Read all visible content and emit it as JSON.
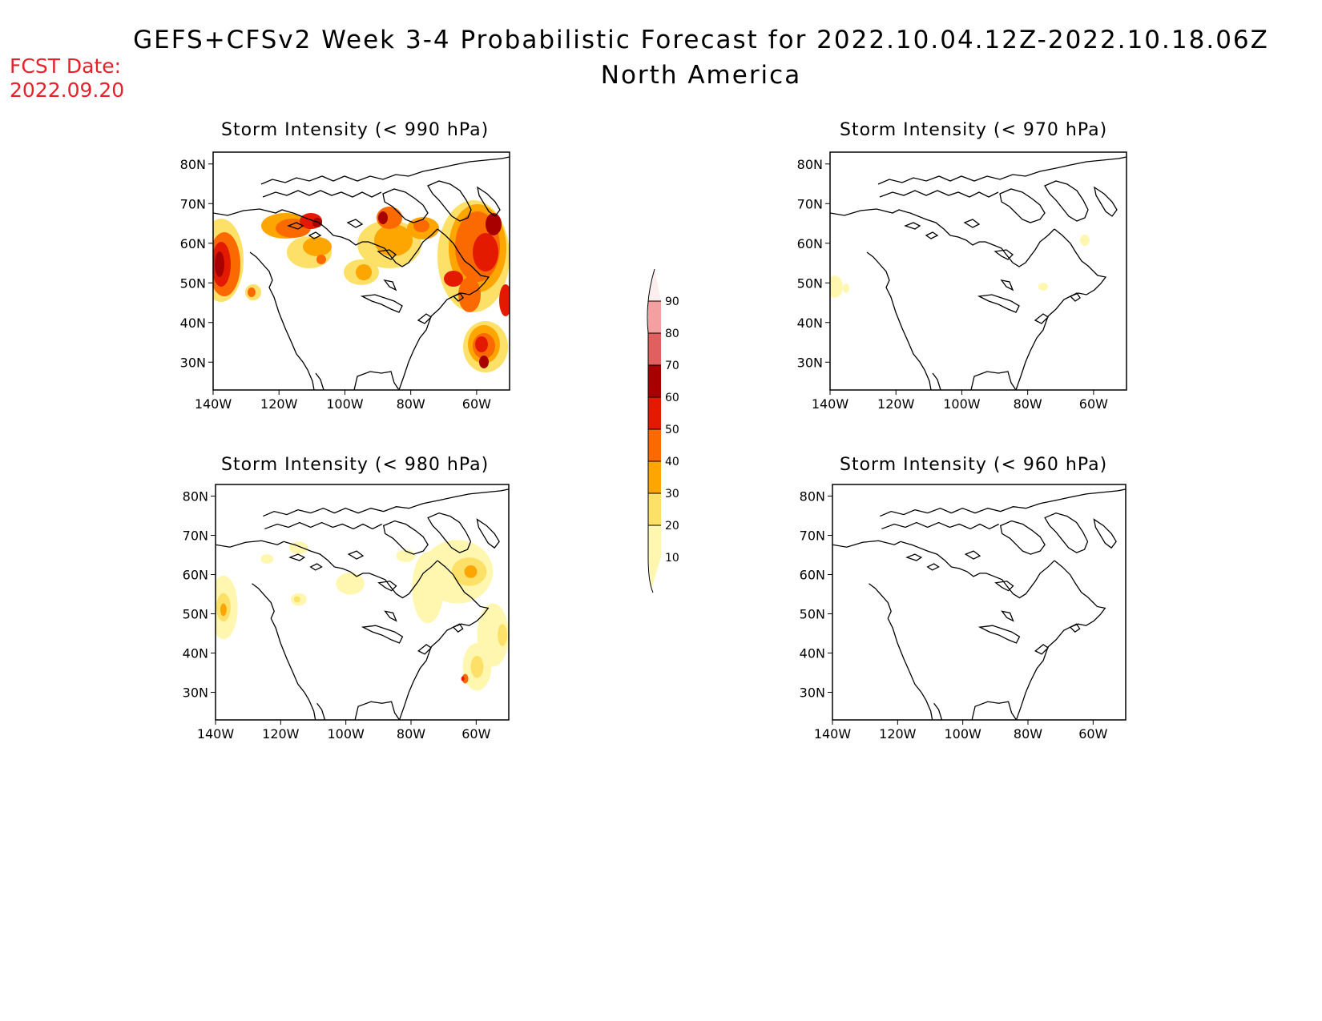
{
  "header": {
    "title": "GEFS+CFSv2 Week 3-4 Probabilistic Forecast for 2022.10.04.12Z-2022.10.18.06Z",
    "subtitle": "North America",
    "fcst_label": "FCST Date:",
    "fcst_date": "2022.09.20"
  },
  "colors": {
    "title_red": "#e8202a",
    "levels": [
      "#fff7b0",
      "#fde068",
      "#fda500",
      "#fb6a00",
      "#e41a00",
      "#a80000",
      "#e06060",
      "#f4a0a0",
      "#fde3e3"
    ]
  },
  "colorbar": {
    "labels": [
      "10",
      "20",
      "30",
      "40",
      "50",
      "60",
      "70",
      "80",
      "90"
    ]
  },
  "axes": {
    "lat_labels": [
      "80N",
      "70N",
      "60N",
      "50N",
      "40N",
      "30N"
    ],
    "lon_labels": [
      "140W",
      "120W",
      "100W",
      "80W",
      "60W"
    ]
  },
  "panels": [
    {
      "id": "p990",
      "title": "Storm Intensity (< 990 hPa)"
    },
    {
      "id": "p970",
      "title": "Storm Intensity (< 970 hPa)"
    },
    {
      "id": "p980",
      "title": "Storm Intensity (< 980 hPa)"
    },
    {
      "id": "p960",
      "title": "Storm Intensity (< 960 hPa)"
    }
  ]
}
